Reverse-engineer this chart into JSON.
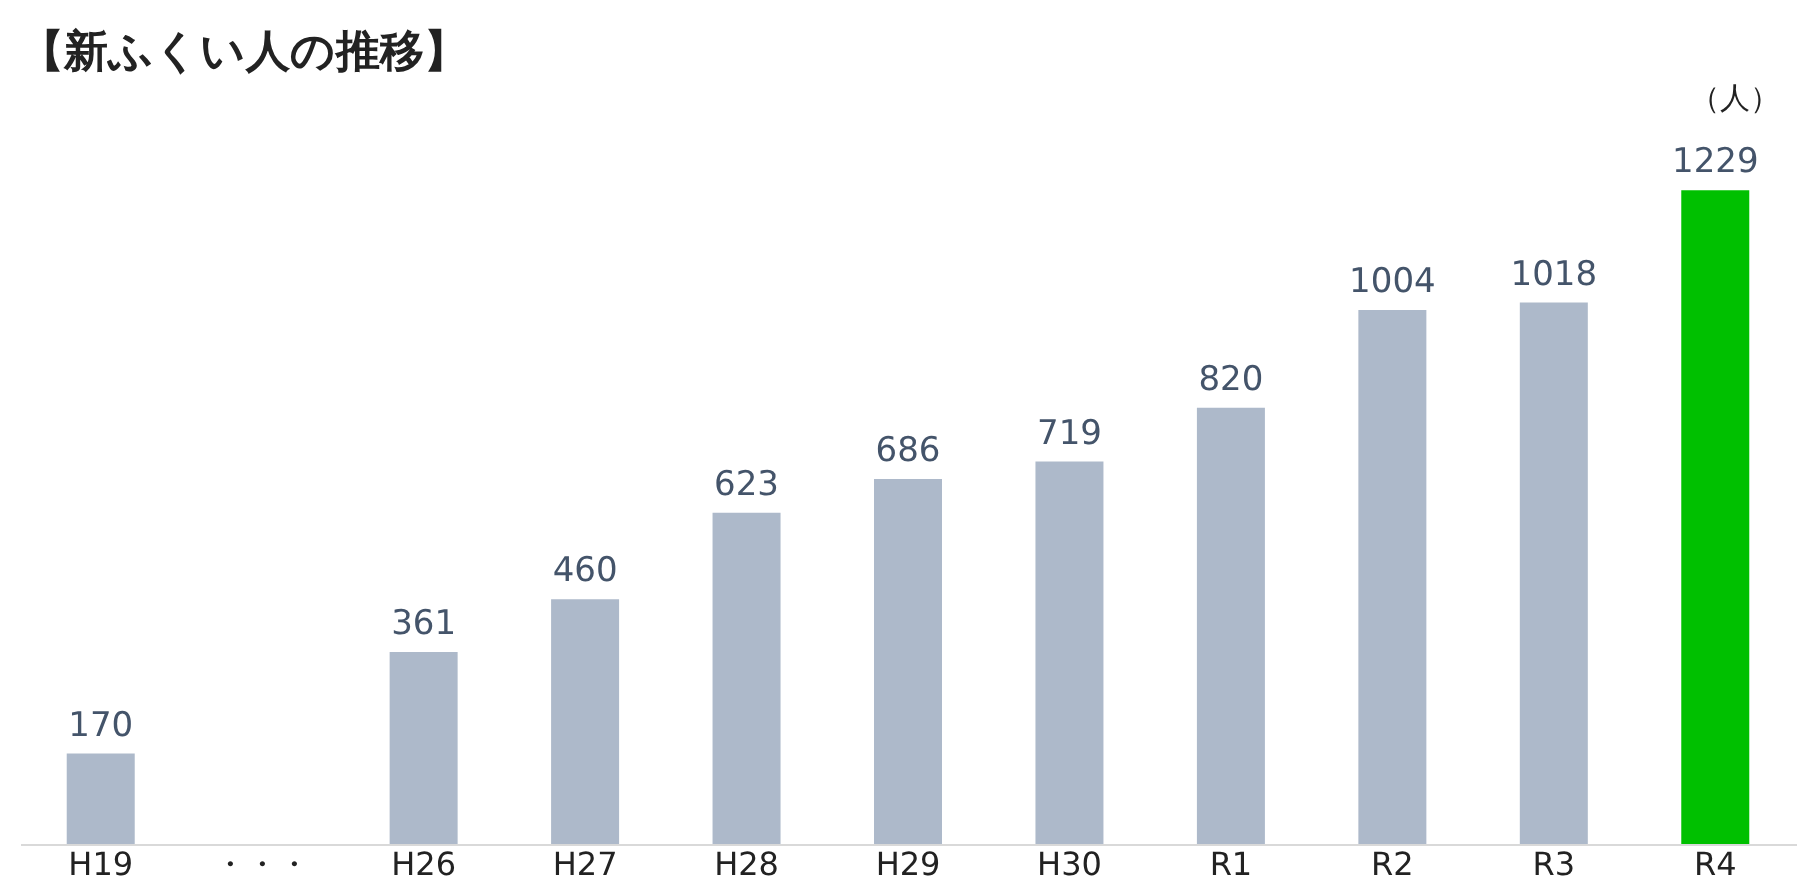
{
  "chart_data": {
    "type": "bar",
    "title": "【新ふくい人の推移】",
    "ylabel": "（人）",
    "categories": [
      "H19",
      "・・・",
      "H26",
      "H27",
      "H28",
      "H29",
      "H30",
      "R1",
      "R2",
      "R3",
      "R4"
    ],
    "values": [
      170,
      null,
      361,
      460,
      623,
      686,
      719,
      820,
      1004,
      1018,
      1229
    ],
    "colors": [
      "#adb9ca",
      "#adb9ca",
      "#adb9ca",
      "#adb9ca",
      "#adb9ca",
      "#adb9ca",
      "#adb9ca",
      "#adb9ca",
      "#adb9ca",
      "#adb9ca",
      "#00c000"
    ],
    "data_labels": true
  }
}
